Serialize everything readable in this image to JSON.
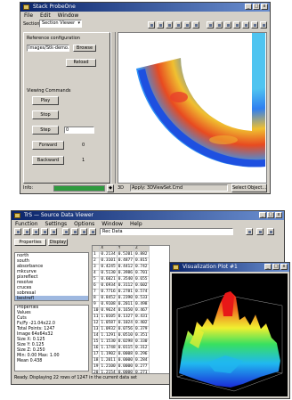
{
  "top_window": {
    "title": "Stack ProbeOne",
    "menu": [
      "File",
      "Edit",
      "Window"
    ],
    "section_select": "Section Viewer",
    "source_config_label": "Reference configuration",
    "source_path": "Images/Stk-demo.sel",
    "browse_label": "Browse",
    "reload_label": "Reload",
    "viewing_label": "Viewing Commands",
    "buttons": [
      "Play",
      "Stop",
      "Step",
      "Forward",
      "Backward"
    ],
    "step_value": "0",
    "counter1": "0",
    "counter2": "1",
    "status_left": "Info:",
    "status_mid": "3D",
    "status_field": "Apply: 3DViewSet.Cmd",
    "select_object_label": "Select Object..."
  },
  "bottom_window": {
    "title": "TrS — Source Data Viewer",
    "menu": [
      "Function",
      "Settings",
      "Options",
      "Window",
      "Help"
    ],
    "tab_labels": [
      "Properties",
      "Display"
    ],
    "filter_value": "Rec Data",
    "list_items": [
      "north",
      "south",
      "absorbance",
      "mkcurve",
      "pixreflect",
      "resolve",
      "cruces",
      "sobresal",
      "bestrefl",
      "perfectr",
      "kpsourfile"
    ],
    "selected_index": 8,
    "info_lines": [
      "Properties",
      "Values",
      "Cuts",
      "Fx/Fy -21.04x22.0",
      "Total Points: 1247",
      "Image 64x64x32",
      "Size X: 0.125",
      "Size Y: 0.125",
      "Size Z: 0.250",
      "Min: 0.00 Max: 1.00",
      "Mean 0.438"
    ],
    "table_headers": [
      "",
      "X",
      "Y",
      "Z"
    ],
    "table_rows": [
      [
        "1",
        "0.2134",
        "0.5201",
        "0.882"
      ],
      [
        "2",
        "0.3101",
        "0.4877",
        "0.815"
      ],
      [
        "3",
        "0.4245",
        "0.4412",
        "0.742"
      ],
      [
        "4",
        "0.5130",
        "0.3986",
        "0.701"
      ],
      [
        "5",
        "0.6021",
        "0.3540",
        "0.655"
      ],
      [
        "6",
        "0.6934",
        "0.3112",
        "0.602"
      ],
      [
        "7",
        "0.7716",
        "0.2781",
        "0.574"
      ],
      [
        "8",
        "0.8452",
        "0.2390",
        "0.533"
      ],
      [
        "9",
        "0.9108",
        "0.2011",
        "0.498"
      ],
      [
        "10",
        "0.9624",
        "0.1650",
        "0.467"
      ],
      [
        "11",
        "1.0105",
        "0.1327",
        "0.431"
      ],
      [
        "12",
        "1.0587",
        "0.1024",
        "0.402"
      ],
      [
        "13",
        "1.0932",
        "0.0756",
        "0.379"
      ],
      [
        "14",
        "1.1291",
        "0.0510",
        "0.351"
      ],
      [
        "15",
        "1.1530",
        "0.0298",
        "0.330"
      ],
      [
        "16",
        "1.1748",
        "0.0115",
        "0.312"
      ],
      [
        "17",
        "1.1902",
        "0.0008",
        "0.296"
      ],
      [
        "18",
        "1.2011",
        "0.0000",
        "0.284"
      ],
      [
        "19",
        "1.2100",
        "0.0000",
        "0.277"
      ],
      [
        "20",
        "1.2154",
        "0.0000",
        "0.271"
      ],
      [
        "21",
        "1.2189",
        "0.0000",
        "0.268"
      ],
      [
        "22",
        "1.2201",
        "0.0000",
        "0.266"
      ]
    ],
    "status": "Ready. Displaying 22 rows of 1247 in the current data set"
  },
  "popup_window": {
    "title": "Visualization Plot #1"
  },
  "colors": {
    "titlebar": "#0a246a",
    "progress": "#2e9a3e"
  }
}
